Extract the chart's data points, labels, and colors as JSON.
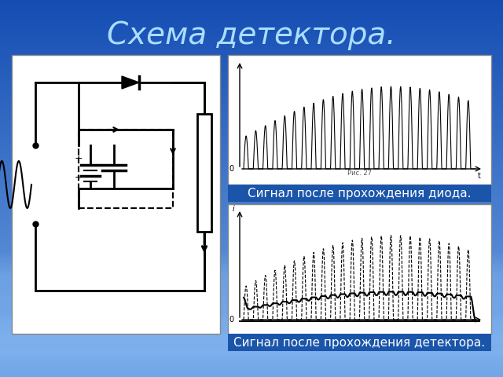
{
  "title": "Схема детектора.",
  "title_color": "#aaddff",
  "title_fontsize": 28,
  "bg_top_color": "#1a6bbf",
  "bg_bottom_color": "#4488cc",
  "caption1": "Сигнал после прохождения диода.",
  "caption2": "Сигнал после прохождения детектора.",
  "caption_fontsize": 11,
  "caption_bg_color": "#1a55aa",
  "caption_text_color": "#ffffff",
  "panel_bg": "#ffffff",
  "panel_border": "#000000"
}
